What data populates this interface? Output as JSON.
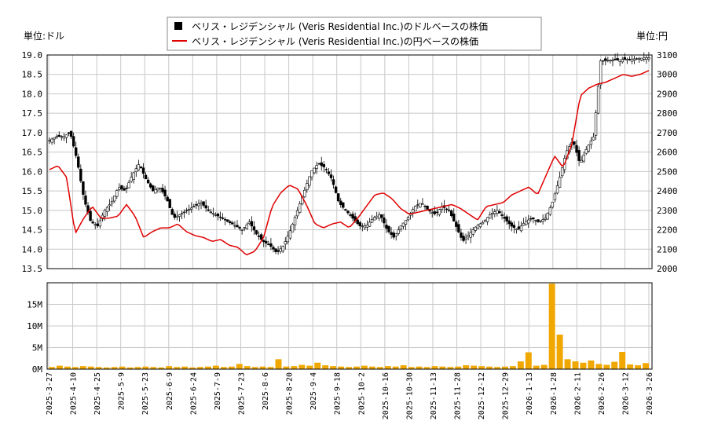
{
  "chart_data": {
    "type": "candlestick+line+volume",
    "legend": {
      "usd_label": "ベリス・レジデンシャル (Veris Residential Inc.)のドルベースの株価",
      "jpy_label": "ベリス・レジデンシャル (Veris Residential Inc.)の円ベースの株価"
    },
    "left_unit": "単位:ドル",
    "right_unit": "単位:円",
    "usd_axis": {
      "min": 13.5,
      "max": 19.0,
      "ticks": [
        "13.5",
        "14.0",
        "14.5",
        "15.0",
        "15.5",
        "16.0",
        "16.5",
        "17.0",
        "17.5",
        "18.0",
        "18.5",
        "19.0"
      ]
    },
    "jpy_axis": {
      "min": 2000,
      "max": 3100,
      "ticks": [
        "2000",
        "2100",
        "2200",
        "2300",
        "2400",
        "2500",
        "2600",
        "2700",
        "2800",
        "2900",
        "3000",
        "3100"
      ]
    },
    "volume_axis": {
      "min": 0,
      "max": 20000000,
      "ticks": [
        "0M",
        "5M",
        "10M",
        "15M"
      ]
    },
    "x_dates": [
      "2025-3-27",
      "2025-4-10",
      "2025-4-25",
      "2025-5-9",
      "2025-5-23",
      "2025-6-9",
      "2025-6-24",
      "2025-7-9",
      "2025-7-23",
      "2025-8-6",
      "2025-8-20",
      "2025-9-4",
      "2025-9-18",
      "2025-10-2",
      "2025-10-16",
      "2025-10-30",
      "2025-11-13",
      "2025-11-28",
      "2025-12-12",
      "2025-12-29",
      "2026-1-13",
      "2026-1-28",
      "2026-2-11",
      "2026-2-26",
      "2026-3-12",
      "2026-3-26"
    ],
    "usd_close_series": [
      16.8,
      16.9,
      16.9,
      17.0,
      16.3,
      15.3,
      14.7,
      14.6,
      15.0,
      15.2,
      15.6,
      15.5,
      15.9,
      16.2,
      15.8,
      15.5,
      15.6,
      15.3,
      14.8,
      14.9,
      15.0,
      15.1,
      15.2,
      15.0,
      14.9,
      14.8,
      14.7,
      14.6,
      14.5,
      14.7,
      14.4,
      14.2,
      14.1,
      13.9,
      14.1,
      14.5,
      15.0,
      15.5,
      16.0,
      16.2,
      16.1,
      15.8,
      15.2,
      15.0,
      14.8,
      14.6,
      14.6,
      14.8,
      14.9,
      14.5,
      14.3,
      14.6,
      14.8,
      15.1,
      15.2,
      15.0,
      14.9,
      15.1,
      15.0,
      14.6,
      14.2,
      14.4,
      14.6,
      14.7,
      14.9,
      15.0,
      14.8,
      14.6,
      14.5,
      14.7,
      14.8,
      14.7,
      14.8,
      15.2,
      15.8,
      16.5,
      16.8,
      16.2,
      16.6,
      16.9,
      18.85,
      18.86,
      18.87,
      18.88,
      18.89,
      18.9,
      18.92,
      18.93
    ],
    "jpy_line_series": [
      2510,
      2530,
      2470,
      2180,
      2260,
      2320,
      2260,
      2260,
      2270,
      2330,
      2270,
      2160,
      2190,
      2210,
      2210,
      2230,
      2190,
      2170,
      2160,
      2140,
      2150,
      2120,
      2110,
      2070,
      2090,
      2160,
      2320,
      2390,
      2430,
      2410,
      2330,
      2230,
      2210,
      2230,
      2240,
      2210,
      2260,
      2320,
      2380,
      2390,
      2360,
      2310,
      2280,
      2290,
      2300,
      2310,
      2320,
      2330,
      2310,
      2280,
      2250,
      2320,
      2330,
      2340,
      2380,
      2400,
      2420,
      2380,
      2480,
      2580,
      2520,
      2640,
      2890,
      2930,
      2950,
      2960,
      2980,
      3000,
      2990,
      3000,
      3020
    ],
    "volume_series_M": [
      0.5,
      0.8,
      0.6,
      0.5,
      0.7,
      0.6,
      0.5,
      0.4,
      0.5,
      0.6,
      0.4,
      0.5,
      0.6,
      0.5,
      0.4,
      0.7,
      0.5,
      0.6,
      0.4,
      0.5,
      0.6,
      0.8,
      0.5,
      0.6,
      1.2,
      0.7,
      0.5,
      0.6,
      0.5,
      2.3,
      0.6,
      0.7,
      1.0,
      0.8,
      1.5,
      0.9,
      0.7,
      0.6,
      0.5,
      0.6,
      0.8,
      0.6,
      0.5,
      0.7,
      0.6,
      0.9,
      0.5,
      0.6,
      0.5,
      0.7,
      0.6,
      0.5,
      0.6,
      0.9,
      0.8,
      0.7,
      0.6,
      0.5,
      0.6,
      0.7,
      1.8,
      3.9,
      0.8,
      1.0,
      19.8,
      8.0,
      2.3,
      1.8,
      1.5,
      2.0,
      1.2,
      1.0,
      1.7,
      4.0,
      1.1,
      0.9,
      1.4
    ]
  }
}
